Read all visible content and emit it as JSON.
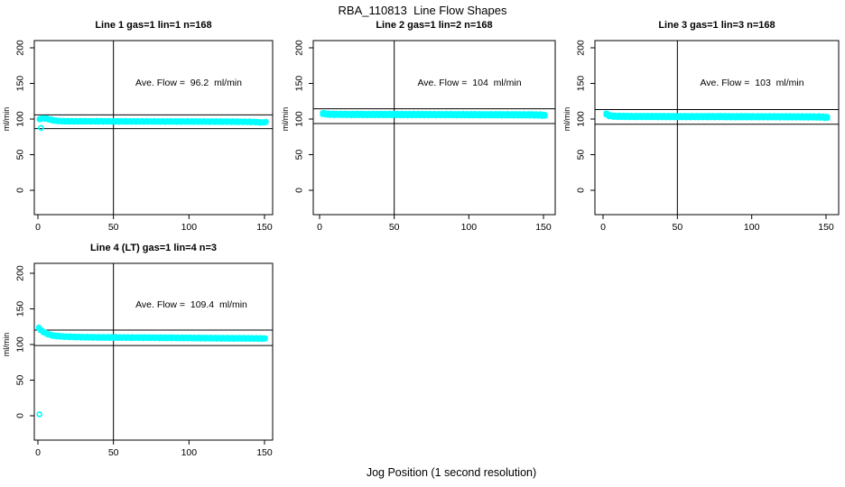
{
  "figure": {
    "title": "RBA_110813  Line Flow Shapes",
    "xlabel": "Jog Position (1 second resolution)",
    "ylabel": "ml/min"
  },
  "colors": {
    "point": "#00FFFF",
    "axis": "#000000",
    "background": "#FFFFFF"
  },
  "chart_data": [
    {
      "type": "scatter",
      "title": "Line 1 gas=1 lin=1 n=168",
      "annotation": "Ave. Flow =  96.2  ml/min",
      "ave_flow_ml_min": 96.2,
      "gas": 1,
      "lin": 1,
      "n": 168,
      "xticks": [
        0,
        50,
        100,
        150
      ],
      "yticks": [
        0,
        50,
        100,
        150,
        200
      ],
      "xlim": [
        0,
        151
      ],
      "ylim": [
        0,
        200
      ],
      "vline_x": 50,
      "hlines_y": [
        105.8,
        86.6
      ],
      "annotation_xy": [
        100,
        150
      ],
      "band_spread": 1.3,
      "band": [
        [
          1,
          99.5
        ],
        [
          2,
          100.6
        ],
        [
          3.5,
          101
        ],
        [
          5,
          100.7
        ],
        [
          7,
          99.9
        ],
        [
          9,
          98.7
        ],
        [
          11,
          97.8
        ],
        [
          14,
          97.2
        ],
        [
          18,
          96.9
        ],
        [
          25,
          96.8
        ],
        [
          35,
          96.8
        ],
        [
          50,
          96.7
        ],
        [
          65,
          96.6
        ],
        [
          80,
          96.6
        ],
        [
          95,
          96.5
        ],
        [
          110,
          96.4
        ],
        [
          125,
          96.3
        ],
        [
          138,
          96.1
        ],
        [
          144,
          95.8
        ],
        [
          148,
          95.2
        ],
        [
          151,
          95.6
        ]
      ],
      "outliers": [
        [
          2,
          87.5
        ]
      ]
    },
    {
      "type": "scatter",
      "title": "Line 2 gas=1 lin=2 n=168",
      "annotation": "Ave. Flow =  104  ml/min",
      "ave_flow_ml_min": 104,
      "gas": 1,
      "lin": 2,
      "n": 168,
      "xticks": [
        0,
        50,
        100,
        150
      ],
      "yticks": [
        0,
        50,
        100,
        150,
        200
      ],
      "xlim": [
        0,
        151
      ],
      "ylim": [
        0,
        200
      ],
      "vline_x": 50,
      "hlines_y": [
        114.4,
        93.6
      ],
      "annotation_xy": [
        100,
        150
      ],
      "band_spread": 2.2,
      "band": [
        [
          2,
          107.9
        ],
        [
          3,
          107.6
        ],
        [
          4,
          107.1
        ],
        [
          6,
          106.8
        ],
        [
          10,
          106.6
        ],
        [
          20,
          106.5
        ],
        [
          35,
          106.4
        ],
        [
          50,
          106.4
        ],
        [
          70,
          106.3
        ],
        [
          90,
          106.2
        ],
        [
          110,
          106.1
        ],
        [
          130,
          106.0
        ],
        [
          142,
          105.9
        ],
        [
          148,
          105.7
        ],
        [
          151,
          105.0
        ]
      ],
      "outliers": []
    },
    {
      "type": "scatter",
      "title": "Line 3 gas=1 lin=3 n=168",
      "annotation": "Ave. Flow =  103  ml/min",
      "ave_flow_ml_min": 103,
      "gas": 1,
      "lin": 3,
      "n": 168,
      "xticks": [
        0,
        50,
        100,
        150
      ],
      "yticks": [
        0,
        50,
        100,
        150,
        200
      ],
      "xlim": [
        0,
        151
      ],
      "ylim": [
        0,
        200
      ],
      "vline_x": 50,
      "hlines_y": [
        113.3,
        92.7
      ],
      "annotation_xy": [
        100,
        150
      ],
      "band_spread": 2.2,
      "band": [
        [
          2,
          107.2
        ],
        [
          3,
          106.2
        ],
        [
          4,
          104.9
        ],
        [
          6,
          104.1
        ],
        [
          10,
          103.8
        ],
        [
          20,
          103.6
        ],
        [
          35,
          103.5
        ],
        [
          55,
          103.4
        ],
        [
          75,
          103.4
        ],
        [
          95,
          103.3
        ],
        [
          115,
          103.2
        ],
        [
          132,
          103.1
        ],
        [
          142,
          103.0
        ],
        [
          148,
          102.7
        ],
        [
          151,
          102.2
        ]
      ],
      "outliers": []
    },
    {
      "type": "scatter",
      "title": "Line 4 (LT) gas=1 lin=4 n=3",
      "annotation": "Ave. Flow =  109.4  ml/min",
      "ave_flow_ml_min": 109.4,
      "gas": 1,
      "lin": 4,
      "n": 3,
      "xticks": [
        0,
        50,
        100,
        150
      ],
      "yticks": [
        0,
        50,
        100,
        150,
        200
      ],
      "xlim": [
        0,
        151
      ],
      "ylim": [
        0,
        200
      ],
      "vline_x": 50,
      "hlines_y": [
        120.3,
        98.5
      ],
      "annotation_xy": [
        100,
        150
      ],
      "band_spread": 1.5,
      "band": [
        [
          0.5,
          123.5
        ],
        [
          1,
          122
        ],
        [
          2,
          120
        ],
        [
          3,
          118.5
        ],
        [
          4,
          117.2
        ],
        [
          6,
          115.2
        ],
        [
          8,
          113.6
        ],
        [
          10,
          112.6
        ],
        [
          13,
          111.8
        ],
        [
          16,
          111.3
        ],
        [
          20,
          110.9
        ],
        [
          25,
          110.5
        ],
        [
          32,
          110.2
        ],
        [
          40,
          110.0
        ],
        [
          55,
          109.8
        ],
        [
          70,
          109.6
        ],
        [
          85,
          109.4
        ],
        [
          100,
          109.2
        ],
        [
          115,
          108.9
        ],
        [
          128,
          108.7
        ],
        [
          138,
          108.6
        ],
        [
          145,
          108.5
        ],
        [
          151,
          108.3
        ]
      ],
      "outliers": [
        [
          1,
          2
        ]
      ]
    }
  ]
}
